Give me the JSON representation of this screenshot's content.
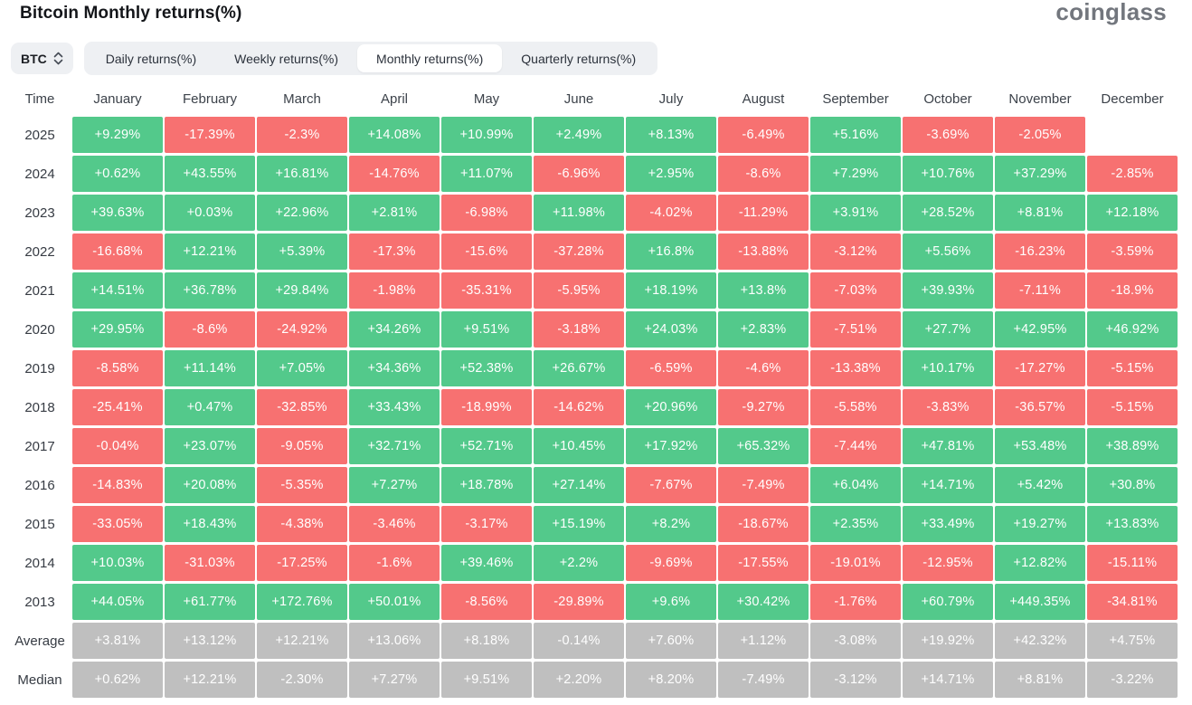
{
  "page": {
    "title": "Bitcoin Monthly returns(%)",
    "logo": "coinglass"
  },
  "controls": {
    "symbol": "BTC",
    "tabs": [
      {
        "label": "Daily returns(%)",
        "active": false
      },
      {
        "label": "Weekly returns(%)",
        "active": false
      },
      {
        "label": "Monthly returns(%)",
        "active": true
      },
      {
        "label": "Quarterly returns(%)",
        "active": false
      }
    ]
  },
  "colors": {
    "positive": "#53c98b",
    "negative": "#f77171",
    "summary": "#bfbfbf"
  },
  "chart_data": {
    "type": "table",
    "title": "Bitcoin Monthly returns(%)",
    "time_header": "Time",
    "months": [
      "January",
      "February",
      "March",
      "April",
      "May",
      "June",
      "July",
      "August",
      "September",
      "October",
      "November",
      "December"
    ],
    "rows": [
      {
        "label": "2025",
        "type": "year",
        "values": [
          "+9.29%",
          "-17.39%",
          "-2.3%",
          "+14.08%",
          "+10.99%",
          "+2.49%",
          "+8.13%",
          "-6.49%",
          "+5.16%",
          "-3.69%",
          "-2.05%",
          null
        ]
      },
      {
        "label": "2024",
        "type": "year",
        "values": [
          "+0.62%",
          "+43.55%",
          "+16.81%",
          "-14.76%",
          "+11.07%",
          "-6.96%",
          "+2.95%",
          "-8.6%",
          "+7.29%",
          "+10.76%",
          "+37.29%",
          "-2.85%"
        ]
      },
      {
        "label": "2023",
        "type": "year",
        "values": [
          "+39.63%",
          "+0.03%",
          "+22.96%",
          "+2.81%",
          "-6.98%",
          "+11.98%",
          "-4.02%",
          "-11.29%",
          "+3.91%",
          "+28.52%",
          "+8.81%",
          "+12.18%"
        ]
      },
      {
        "label": "2022",
        "type": "year",
        "values": [
          "-16.68%",
          "+12.21%",
          "+5.39%",
          "-17.3%",
          "-15.6%",
          "-37.28%",
          "+16.8%",
          "-13.88%",
          "-3.12%",
          "+5.56%",
          "-16.23%",
          "-3.59%"
        ]
      },
      {
        "label": "2021",
        "type": "year",
        "values": [
          "+14.51%",
          "+36.78%",
          "+29.84%",
          "-1.98%",
          "-35.31%",
          "-5.95%",
          "+18.19%",
          "+13.8%",
          "-7.03%",
          "+39.93%",
          "-7.11%",
          "-18.9%"
        ]
      },
      {
        "label": "2020",
        "type": "year",
        "values": [
          "+29.95%",
          "-8.6%",
          "-24.92%",
          "+34.26%",
          "+9.51%",
          "-3.18%",
          "+24.03%",
          "+2.83%",
          "-7.51%",
          "+27.7%",
          "+42.95%",
          "+46.92%"
        ]
      },
      {
        "label": "2019",
        "type": "year",
        "values": [
          "-8.58%",
          "+11.14%",
          "+7.05%",
          "+34.36%",
          "+52.38%",
          "+26.67%",
          "-6.59%",
          "-4.6%",
          "-13.38%",
          "+10.17%",
          "-17.27%",
          "-5.15%"
        ]
      },
      {
        "label": "2018",
        "type": "year",
        "values": [
          "-25.41%",
          "+0.47%",
          "-32.85%",
          "+33.43%",
          "-18.99%",
          "-14.62%",
          "+20.96%",
          "-9.27%",
          "-5.58%",
          "-3.83%",
          "-36.57%",
          "-5.15%"
        ]
      },
      {
        "label": "2017",
        "type": "year",
        "values": [
          "-0.04%",
          "+23.07%",
          "-9.05%",
          "+32.71%",
          "+52.71%",
          "+10.45%",
          "+17.92%",
          "+65.32%",
          "-7.44%",
          "+47.81%",
          "+53.48%",
          "+38.89%"
        ]
      },
      {
        "label": "2016",
        "type": "year",
        "values": [
          "-14.83%",
          "+20.08%",
          "-5.35%",
          "+7.27%",
          "+18.78%",
          "+27.14%",
          "-7.67%",
          "-7.49%",
          "+6.04%",
          "+14.71%",
          "+5.42%",
          "+30.8%"
        ]
      },
      {
        "label": "2015",
        "type": "year",
        "values": [
          "-33.05%",
          "+18.43%",
          "-4.38%",
          "-3.46%",
          "-3.17%",
          "+15.19%",
          "+8.2%",
          "-18.67%",
          "+2.35%",
          "+33.49%",
          "+19.27%",
          "+13.83%"
        ]
      },
      {
        "label": "2014",
        "type": "year",
        "values": [
          "+10.03%",
          "-31.03%",
          "-17.25%",
          "-1.6%",
          "+39.46%",
          "+2.2%",
          "-9.69%",
          "-17.55%",
          "-19.01%",
          "-12.95%",
          "+12.82%",
          "-15.11%"
        ]
      },
      {
        "label": "2013",
        "type": "year",
        "values": [
          "+44.05%",
          "+61.77%",
          "+172.76%",
          "+50.01%",
          "-8.56%",
          "-29.89%",
          "+9.6%",
          "+30.42%",
          "-1.76%",
          "+60.79%",
          "+449.35%",
          "-34.81%"
        ]
      },
      {
        "label": "Average",
        "type": "summary",
        "values": [
          "+3.81%",
          "+13.12%",
          "+12.21%",
          "+13.06%",
          "+8.18%",
          "-0.14%",
          "+7.60%",
          "+1.12%",
          "-3.08%",
          "+19.92%",
          "+42.32%",
          "+4.75%"
        ]
      },
      {
        "label": "Median",
        "type": "summary",
        "values": [
          "+0.62%",
          "+12.21%",
          "-2.30%",
          "+7.27%",
          "+9.51%",
          "+2.20%",
          "+8.20%",
          "-7.49%",
          "-3.12%",
          "+14.71%",
          "+8.81%",
          "-3.22%"
        ]
      }
    ]
  }
}
